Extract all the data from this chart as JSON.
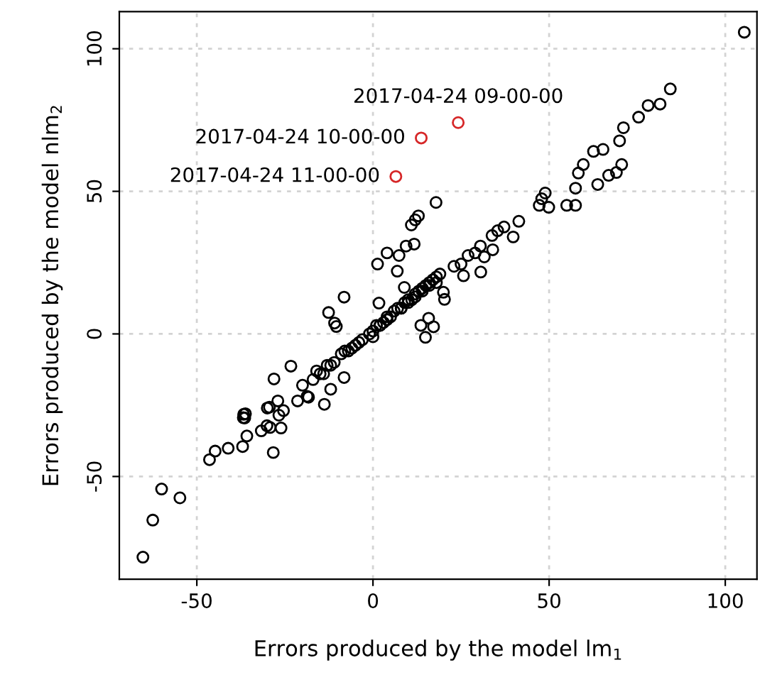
{
  "chart_data": {
    "type": "scatter",
    "xlabel": "Errors produced by the model lm$_{1}$",
    "ylabel": "Errors produced by the model nlm$_{2}$",
    "xlim": [
      -72,
      109
    ],
    "ylim": [
      -86,
      113
    ],
    "xticks": [
      -50,
      0,
      50,
      100
    ],
    "yticks": [
      -50,
      0,
      50,
      100
    ],
    "grid": true,
    "marker": "circle",
    "series": [
      {
        "color": "#000000",
        "x": [
          105.4,
          84.4,
          81.5,
          78.1,
          75.4,
          71.1,
          70,
          65.3,
          62.6,
          70.6,
          69.1,
          66.9,
          63.8,
          59.7,
          58.3,
          57.5,
          57.5,
          55,
          48.9,
          47.9,
          49.9,
          47.2,
          41.4,
          39.8,
          37.2,
          35.4,
          33.8,
          34,
          31.6,
          30.5,
          29,
          27,
          30.6,
          17.9,
          12.9,
          10.9,
          12,
          11.7,
          9.4,
          7.4,
          4,
          1.3,
          6.9,
          14.9,
          17.2,
          13.6,
          15.8,
          8.9,
          1.7,
          -8.2,
          -12.6,
          -10.9,
          -10.4,
          -23.3,
          -28.1,
          -13.8,
          25,
          23,
          25.7,
          20,
          20.3,
          -8.2,
          -12,
          -21.4,
          -18.7,
          -29.4,
          -36.8,
          -36.2,
          -65.3,
          -62.5,
          -60,
          -54.8,
          -46.4,
          -44.8,
          -41.1,
          -37,
          -35.8,
          -36.7,
          -36.4,
          -31.7,
          -30.1,
          -29.2,
          -26.1,
          -28.3,
          -30,
          -26.7,
          -25.4,
          -27,
          -18.3,
          -20,
          -17,
          -15,
          -13,
          -11,
          -9,
          -7,
          -5,
          -3,
          -1,
          0,
          1,
          2,
          3,
          4,
          5,
          6,
          7,
          8,
          9,
          10,
          11,
          12,
          13,
          14,
          15,
          16,
          17,
          18,
          19,
          -16,
          -12,
          -8,
          -4,
          0,
          4,
          8,
          12,
          16,
          -14,
          -6,
          2,
          10,
          14,
          18
        ],
        "values": [
          105.8,
          85.9,
          80.6,
          80.1,
          76,
          72.3,
          67.7,
          64.7,
          64,
          59.4,
          56.6,
          55.6,
          52.4,
          59.4,
          56.4,
          51.1,
          45.1,
          45.1,
          49.4,
          47.4,
          44.4,
          45.1,
          39.5,
          34,
          37.5,
          36.2,
          34.5,
          29.5,
          27,
          30.8,
          28.4,
          27.5,
          21.7,
          46.1,
          41.4,
          38.2,
          40,
          31.5,
          30.8,
          27.5,
          28.4,
          24.5,
          22,
          -1.2,
          2.5,
          3,
          5.5,
          16.3,
          10.8,
          12.9,
          7.5,
          3.8,
          2.6,
          -11.3,
          -15.8,
          -24.7,
          24.5,
          23.7,
          20.4,
          14.6,
          12.1,
          -15.3,
          -19.4,
          -23.5,
          -21.9,
          -25.7,
          -29.4,
          -28,
          -78.3,
          -65.3,
          -54.4,
          -57.5,
          -44.1,
          -41.1,
          -40.1,
          -39.5,
          -35.8,
          -28.2,
          -29.5,
          -34,
          -32.2,
          -32.8,
          -33,
          -41.6,
          -26,
          -28.5,
          -26.9,
          -23.5,
          -22.2,
          -18,
          -16,
          -14,
          -11,
          -10,
          -7,
          -6,
          -4,
          -2,
          0,
          1,
          3,
          3,
          4,
          6,
          6,
          8,
          9,
          9,
          11,
          12,
          12,
          14,
          15,
          15,
          17,
          18,
          19,
          20,
          21,
          -13,
          -11,
          -6,
          -3,
          -1,
          5,
          9,
          13,
          17,
          -14,
          -5,
          3,
          11,
          16,
          18
        ]
      },
      {
        "color": "#d62728",
        "x": [
          24.2,
          13.7,
          6.5
        ],
        "values": [
          74.1,
          68.7,
          55.2
        ]
      }
    ],
    "annotations": [
      {
        "text": "2017-04-24 09-00-00",
        "x": 24.2,
        "y": 74.1
      },
      {
        "text": "2017-04-24 10-00-00",
        "x": 13.7,
        "y": 68.7
      },
      {
        "text": "2017-04-24 11-00-00",
        "x": 6.5,
        "y": 55.2
      }
    ]
  }
}
